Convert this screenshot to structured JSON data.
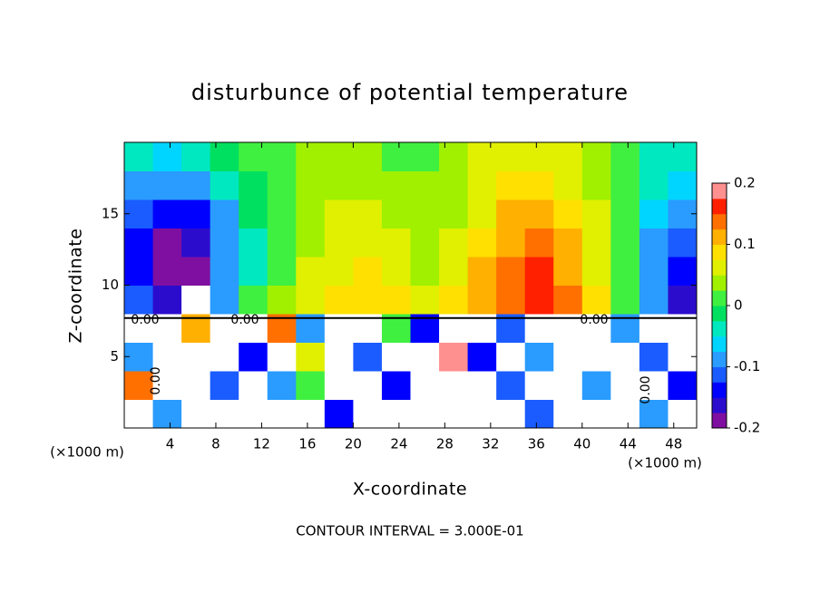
{
  "chart_data": {
    "type": "contour",
    "title": "disturbunce of potential temperature",
    "x_label": "X-coordinate",
    "y_label": "Z-coordinate",
    "x_unit": "(×1000 m)",
    "footer": "CONTOUR INTERVAL = 3.000E-01",
    "contour_labels": [
      "0.00",
      "0.00",
      "0.00",
      "0.00",
      "0.00"
    ],
    "xlim": [
      0,
      50
    ],
    "ylim": [
      0,
      20
    ],
    "xticks": [
      4,
      8,
      12,
      16,
      20,
      24,
      28,
      32,
      36,
      40,
      44,
      48
    ],
    "yticks": [
      5,
      10,
      15
    ],
    "clim": [
      -0.2,
      0.2
    ],
    "cticks": [
      0.2,
      0.1,
      0,
      -0.1,
      -0.2
    ],
    "colors": [
      "#7f0fa0",
      "#2c0ccc",
      "#0000ff",
      "#1a5cff",
      "#2a9bff",
      "#00d5ff",
      "#00e8c0",
      "#00e060",
      "#40f040",
      "#a0f000",
      "#e0f000",
      "#ffe000",
      "#ffb000",
      "#ff7000",
      "#ff2000",
      "#ff9090"
    ],
    "x": [
      1.25,
      3.75,
      6.25,
      8.75,
      11.25,
      13.75,
      16.25,
      18.75,
      21.25,
      23.75,
      26.25,
      28.75,
      31.25,
      33.75,
      36.25,
      38.75,
      41.25,
      43.75,
      46.25,
      48.75
    ],
    "y": [
      1,
      3,
      5,
      7,
      9,
      11,
      13,
      15,
      17,
      19
    ],
    "z": [
      [
        0.3,
        -0.1,
        0.3,
        0.3,
        -0.3,
        0.3,
        0.3,
        -0.15,
        0.3,
        0.3,
        -0.3,
        0.3,
        0.3,
        0.3,
        -0.12,
        0.3,
        -0.3,
        0.3,
        -0.1,
        0.3
      ],
      [
        0.15,
        -0.3,
        0.3,
        -0.12,
        0.3,
        -0.1,
        0.02,
        0.3,
        0.3,
        -0.15,
        0.3,
        -0.3,
        0.3,
        -0.12,
        -0.3,
        0.3,
        -0.1,
        0.3,
        -0.3,
        -0.15
      ],
      [
        -0.1,
        0.3,
        -0.3,
        0.3,
        -0.15,
        0.3,
        0.05,
        -0.3,
        -0.12,
        0.3,
        0.3,
        0.2,
        -0.15,
        0.3,
        -0.1,
        0.3,
        -0.3,
        0.3,
        -0.12,
        0.3
      ],
      [
        0.3,
        -0.3,
        0.1,
        0.3,
        -0.3,
        0.15,
        -0.1,
        0.3,
        -0.3,
        0.0,
        -0.15,
        0.3,
        0.25,
        -0.12,
        0.3,
        -0.3,
        0.3,
        -0.1,
        0.3,
        -0.3
      ],
      [
        -0.12,
        -0.17,
        -0.25,
        -0.08,
        0.0,
        0.04,
        0.06,
        0.08,
        0.09,
        0.09,
        0.07,
        0.08,
        0.12,
        0.15,
        0.16,
        0.13,
        0.08,
        0.02,
        -0.1,
        -0.16
      ],
      [
        -0.15,
        -0.2,
        -0.18,
        -0.1,
        -0.03,
        0.02,
        0.05,
        0.07,
        0.08,
        0.06,
        0.04,
        0.06,
        0.1,
        0.14,
        0.16,
        0.12,
        0.07,
        0.0,
        -0.1,
        -0.14
      ],
      [
        -0.14,
        -0.18,
        -0.16,
        -0.1,
        -0.03,
        0.02,
        0.04,
        0.06,
        0.06,
        0.05,
        0.03,
        0.05,
        0.08,
        0.12,
        0.14,
        0.11,
        0.06,
        0.0,
        -0.08,
        -0.12
      ],
      [
        -0.12,
        -0.14,
        -0.13,
        -0.08,
        -0.02,
        0.02,
        0.04,
        0.05,
        0.06,
        0.04,
        0.03,
        0.04,
        0.07,
        0.1,
        0.11,
        0.09,
        0.05,
        0.0,
        -0.07,
        -0.1
      ],
      [
        -0.08,
        -0.1,
        -0.08,
        -0.05,
        -0.01,
        0.02,
        0.03,
        0.04,
        0.04,
        0.03,
        0.03,
        0.04,
        0.06,
        0.08,
        0.08,
        0.07,
        0.04,
        0.0,
        -0.05,
        -0.07
      ],
      [
        -0.05,
        -0.06,
        -0.04,
        -0.02,
        0.0,
        0.02,
        0.03,
        0.03,
        0.03,
        0.02,
        0.02,
        0.03,
        0.05,
        0.06,
        0.07,
        0.06,
        0.04,
        0.0,
        -0.03,
        -0.05
      ]
    ]
  }
}
